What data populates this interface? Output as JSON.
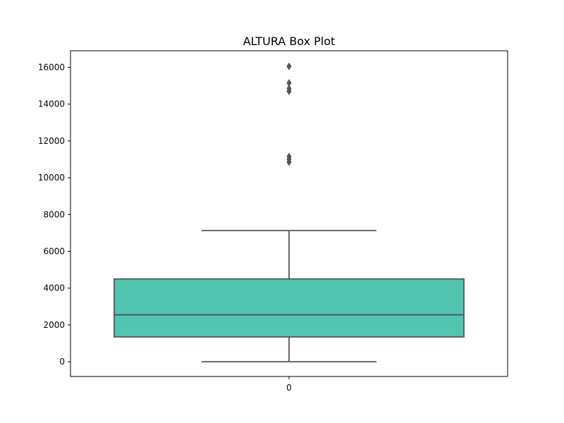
{
  "chart_data": {
    "type": "box",
    "title": "ALTURA Box Plot",
    "xlabel": "",
    "ylabel": "",
    "categories": [
      "0"
    ],
    "ylim": [
      -800,
      16900
    ],
    "yticks": [
      0,
      2000,
      4000,
      6000,
      8000,
      10000,
      12000,
      14000,
      16000
    ],
    "ytick_labels": [
      "0",
      "2000",
      "4000",
      "6000",
      "8000",
      "10000",
      "12000",
      "14000",
      "16000"
    ],
    "boxes": [
      {
        "category": "0",
        "whisker_low": 0,
        "q1": 1350,
        "median": 2550,
        "q3": 4500,
        "whisker_high": 7130,
        "outliers": [
          10850,
          11000,
          11150,
          14700,
          14850,
          15150,
          16050
        ]
      }
    ],
    "grid": false,
    "legend": "none",
    "colors": {
      "box_fill": "#52c4b2",
      "line": "#555555",
      "axes": "#000000"
    }
  }
}
